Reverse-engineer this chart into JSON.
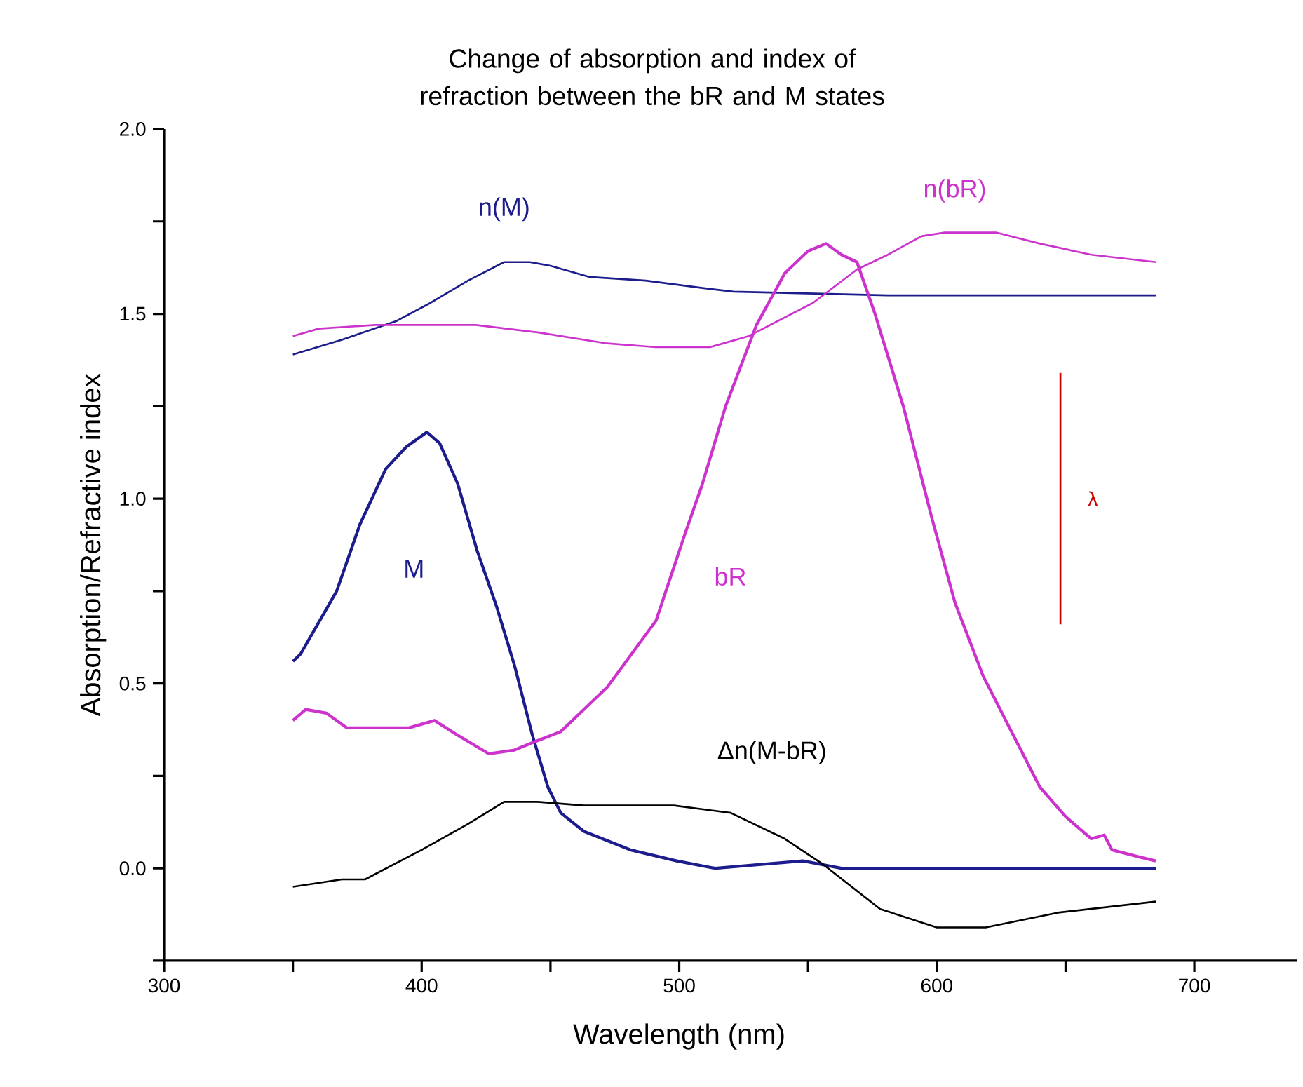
{
  "chart_data": {
    "type": "line",
    "title": "Change of absorption and index of refraction between the bR and M states",
    "xlabel": "Wavelength (nm)",
    "ylabel": "Absorption/Refractive index",
    "xlim": [
      300,
      740
    ],
    "ylim": [
      -0.25,
      2.0
    ],
    "xticks": [
      300,
      {
        "value": 350,
        "label": null
      },
      400,
      {
        "value": 450,
        "label": null
      },
      500,
      {
        "value": 550,
        "label": null
      },
      600,
      {
        "value": 650,
        "label": null
      },
      700
    ],
    "yticks": [
      {
        "value": -0.25,
        "label": null
      },
      {
        "value": 0,
        "label": "0.0"
      },
      {
        "value": 0.25,
        "label": null
      },
      {
        "value": 0.5,
        "label": "0.5"
      },
      {
        "value": 0.75,
        "label": null
      },
      {
        "value": 1.0,
        "label": "1.0"
      },
      {
        "value": 1.25,
        "label": null
      },
      {
        "value": 1.5,
        "label": "1.5"
      },
      {
        "value": 1.75,
        "label": null
      },
      {
        "value": 2.0,
        "label": "2.0"
      }
    ],
    "series": [
      {
        "name": "n(M)",
        "color": "#1c1c8c",
        "x": [
          350,
          369,
          390,
          403.5,
          418,
          432,
          442,
          450,
          465,
          487,
          509,
          521,
          581,
          640,
          685
        ],
        "values": [
          1.39,
          1.43,
          1.48,
          1.53,
          1.59,
          1.64,
          1.64,
          1.63,
          1.6,
          1.59,
          1.57,
          1.56,
          1.55,
          1.55,
          1.55
        ]
      },
      {
        "name": "n(bR)",
        "color": "#cc33cc",
        "x": [
          350,
          360,
          382,
          421,
          445,
          472,
          491,
          512,
          527,
          552,
          569,
          581,
          594,
          603,
          623,
          640,
          660,
          685
        ],
        "values": [
          1.44,
          1.46,
          1.47,
          1.47,
          1.45,
          1.42,
          1.41,
          1.41,
          1.44,
          1.53,
          1.62,
          1.66,
          1.71,
          1.72,
          1.72,
          1.69,
          1.66,
          1.64
        ]
      },
      {
        "name": "M",
        "color": "#1c1c8c",
        "x": [
          350,
          353,
          367,
          376,
          386,
          394,
          402,
          407,
          414,
          421.5,
          429,
          436,
          443,
          449,
          454,
          463,
          481,
          499,
          514,
          548,
          563,
          590,
          685
        ],
        "values": [
          0.56,
          0.58,
          0.75,
          0.93,
          1.08,
          1.14,
          1.18,
          1.15,
          1.04,
          0.86,
          0.71,
          0.55,
          0.36,
          0.22,
          0.15,
          0.1,
          0.05,
          0.02,
          0.0,
          0.02,
          0.0,
          0.0,
          0.0
        ]
      },
      {
        "name": "bR",
        "color": "#cc33cc",
        "x": [
          350,
          355,
          363,
          371,
          385,
          395,
          405,
          414,
          426,
          436,
          443,
          454,
          472,
          491,
          502,
          509,
          518,
          530,
          541,
          550,
          557,
          563,
          569,
          576,
          587,
          598,
          607,
          618,
          629,
          640,
          650,
          660,
          665,
          668,
          679,
          685
        ],
        "values": [
          0.4,
          0.43,
          0.42,
          0.38,
          0.38,
          0.38,
          0.4,
          0.36,
          0.31,
          0.32,
          0.34,
          0.37,
          0.49,
          0.67,
          0.9,
          1.04,
          1.25,
          1.47,
          1.61,
          1.67,
          1.69,
          1.66,
          1.64,
          1.5,
          1.25,
          0.95,
          0.72,
          0.52,
          0.37,
          0.22,
          0.14,
          0.08,
          0.09,
          0.05,
          0.03,
          0.02
        ]
      },
      {
        "name": "Δn(M-bR)",
        "color": "#000000",
        "x": [
          350,
          369,
          378,
          400,
          418,
          432,
          445,
          463,
          498,
          520,
          541,
          556,
          578,
          600,
          619,
          647,
          685
        ],
        "values": [
          -0.05,
          -0.03,
          -0.03,
          0.05,
          0.12,
          0.18,
          0.18,
          0.17,
          0.17,
          0.15,
          0.08,
          0.01,
          -0.11,
          -0.16,
          -0.16,
          -0.12,
          -0.09
        ]
      },
      {
        "name": "λ",
        "color": "#cc0000",
        "x": [
          648,
          648
        ],
        "values": [
          0.66,
          1.34
        ]
      }
    ]
  }
}
